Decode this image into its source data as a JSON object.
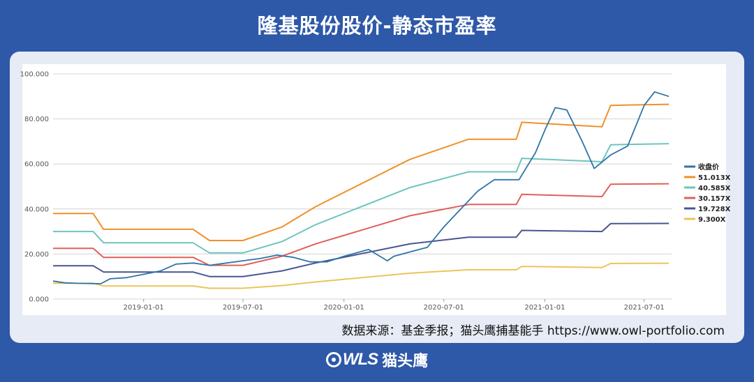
{
  "header": {
    "title": "隆基股份股价-静态市盈率"
  },
  "footer": {
    "source": "数据来源：基金季报；猫头鹰捕基能手  https://www.owl-portfolio.com",
    "brand_mark": "WLS",
    "brand_name": "猫头鹰"
  },
  "colors": {
    "background": "#2e58a8",
    "price": "#2e75a6",
    "pe_51": "#f0902a",
    "pe_40": "#6cc5be",
    "pe_30": "#e0605a",
    "pe_19": "#4a5591",
    "pe_9": "#ebc55a"
  },
  "chart_data": {
    "type": "line",
    "x_type": "date",
    "xlim": [
      "2018-07-20",
      "2021-08-20"
    ],
    "ylim": [
      0,
      100
    ],
    "x_ticks": [
      "2019-01-01",
      "2019-07-01",
      "2020-01-01",
      "2020-07-01",
      "2021-01-01",
      "2021-07-01"
    ],
    "y_ticks": [
      "0.000",
      "20.000",
      "40.000",
      "60.000",
      "80.000",
      "100.000"
    ],
    "grid": "horizontal",
    "legend_position": "right",
    "series": [
      {
        "name": "收盘价",
        "color": "#2e75a6",
        "points": [
          [
            "2018-07-20",
            8.0
          ],
          [
            "2018-08-10",
            7.2
          ],
          [
            "2018-09-01",
            7.0
          ],
          [
            "2018-10-15",
            6.8
          ],
          [
            "2018-11-01",
            9.0
          ],
          [
            "2018-12-01",
            9.5
          ],
          [
            "2019-01-01",
            11.0
          ],
          [
            "2019-02-01",
            12.5
          ],
          [
            "2019-03-01",
            15.5
          ],
          [
            "2019-04-01",
            16.0
          ],
          [
            "2019-05-01",
            15.0
          ],
          [
            "2019-06-01",
            16.0
          ],
          [
            "2019-07-01",
            17.0
          ],
          [
            "2019-08-01",
            18.0
          ],
          [
            "2019-09-01",
            19.5
          ],
          [
            "2019-10-01",
            18.5
          ],
          [
            "2019-11-01",
            16.5
          ],
          [
            "2019-12-01",
            16.5
          ],
          [
            "2020-01-01",
            19.0
          ],
          [
            "2020-02-15",
            22.0
          ],
          [
            "2020-03-20",
            17.0
          ],
          [
            "2020-04-01",
            19.0
          ],
          [
            "2020-05-01",
            21.0
          ],
          [
            "2020-06-01",
            23.0
          ],
          [
            "2020-07-01",
            32.0
          ],
          [
            "2020-08-01",
            40.0
          ],
          [
            "2020-09-01",
            48.0
          ],
          [
            "2020-10-01",
            53.0
          ],
          [
            "2020-11-15",
            53.0
          ],
          [
            "2020-12-15",
            65.0
          ],
          [
            "2021-01-01",
            75.0
          ],
          [
            "2021-01-20",
            85.0
          ],
          [
            "2021-02-10",
            84.0
          ],
          [
            "2021-03-10",
            70.0
          ],
          [
            "2021-04-01",
            58.0
          ],
          [
            "2021-05-01",
            64.0
          ],
          [
            "2021-06-01",
            68.0
          ],
          [
            "2021-07-01",
            86.0
          ],
          [
            "2021-07-20",
            92.0
          ],
          [
            "2021-08-15",
            90.0
          ]
        ]
      },
      {
        "name": "51.013X",
        "color": "#f0902a",
        "points": [
          [
            "2018-07-20",
            38.0
          ],
          [
            "2018-10-01",
            38.0
          ],
          [
            "2018-10-20",
            31.0
          ],
          [
            "2019-04-01",
            31.0
          ],
          [
            "2019-05-01",
            26.0
          ],
          [
            "2019-07-01",
            26.0
          ],
          [
            "2019-09-10",
            32.0
          ],
          [
            "2019-11-10",
            41.0
          ],
          [
            "2020-04-30",
            62.0
          ],
          [
            "2020-08-15",
            71.0
          ],
          [
            "2020-11-10",
            71.0
          ],
          [
            "2020-11-20",
            78.5
          ],
          [
            "2021-04-15",
            76.5
          ],
          [
            "2021-05-01",
            86.0
          ],
          [
            "2021-08-15",
            86.5
          ]
        ]
      },
      {
        "name": "40.585X",
        "color": "#6cc5be",
        "points": [
          [
            "2018-07-20",
            30.0
          ],
          [
            "2018-10-01",
            30.0
          ],
          [
            "2018-10-20",
            25.0
          ],
          [
            "2019-04-01",
            25.0
          ],
          [
            "2019-05-01",
            20.5
          ],
          [
            "2019-07-01",
            20.5
          ],
          [
            "2019-09-10",
            25.5
          ],
          [
            "2019-11-10",
            33.0
          ],
          [
            "2020-04-30",
            49.5
          ],
          [
            "2020-08-15",
            56.5
          ],
          [
            "2020-11-10",
            56.5
          ],
          [
            "2020-11-20",
            62.5
          ],
          [
            "2021-04-15",
            61.0
          ],
          [
            "2021-05-01",
            68.5
          ],
          [
            "2021-08-15",
            69.0
          ]
        ]
      },
      {
        "name": "30.157X",
        "color": "#e0605a",
        "points": [
          [
            "2018-07-20",
            22.5
          ],
          [
            "2018-10-01",
            22.5
          ],
          [
            "2018-10-20",
            18.5
          ],
          [
            "2019-04-01",
            18.5
          ],
          [
            "2019-05-01",
            15.0
          ],
          [
            "2019-07-01",
            15.0
          ],
          [
            "2019-09-10",
            19.0
          ],
          [
            "2019-11-10",
            24.5
          ],
          [
            "2020-04-30",
            37.0
          ],
          [
            "2020-08-15",
            42.0
          ],
          [
            "2020-11-10",
            42.0
          ],
          [
            "2020-11-20",
            46.5
          ],
          [
            "2021-04-15",
            45.5
          ],
          [
            "2021-05-01",
            51.0
          ],
          [
            "2021-08-15",
            51.2
          ]
        ]
      },
      {
        "name": "19.728X",
        "color": "#4a5591",
        "points": [
          [
            "2018-07-20",
            14.8
          ],
          [
            "2018-10-01",
            14.8
          ],
          [
            "2018-10-20",
            12.0
          ],
          [
            "2019-04-01",
            12.0
          ],
          [
            "2019-05-01",
            10.0
          ],
          [
            "2019-07-01",
            10.0
          ],
          [
            "2019-09-10",
            12.5
          ],
          [
            "2019-11-10",
            16.0
          ],
          [
            "2020-04-30",
            24.5
          ],
          [
            "2020-08-15",
            27.5
          ],
          [
            "2020-11-10",
            27.5
          ],
          [
            "2020-11-20",
            30.5
          ],
          [
            "2021-04-15",
            30.0
          ],
          [
            "2021-05-01",
            33.5
          ],
          [
            "2021-08-15",
            33.6
          ]
        ]
      },
      {
        "name": "9.300X",
        "color": "#ebc55a",
        "points": [
          [
            "2018-07-20",
            7.0
          ],
          [
            "2018-10-01",
            7.0
          ],
          [
            "2018-10-20",
            5.8
          ],
          [
            "2019-04-01",
            5.8
          ],
          [
            "2019-05-01",
            4.8
          ],
          [
            "2019-07-01",
            4.8
          ],
          [
            "2019-09-10",
            6.0
          ],
          [
            "2019-11-10",
            7.6
          ],
          [
            "2020-04-30",
            11.5
          ],
          [
            "2020-08-15",
            13.0
          ],
          [
            "2020-11-10",
            13.0
          ],
          [
            "2020-11-20",
            14.5
          ],
          [
            "2021-04-15",
            14.0
          ],
          [
            "2021-05-01",
            15.8
          ],
          [
            "2021-08-15",
            15.9
          ]
        ]
      }
    ]
  }
}
